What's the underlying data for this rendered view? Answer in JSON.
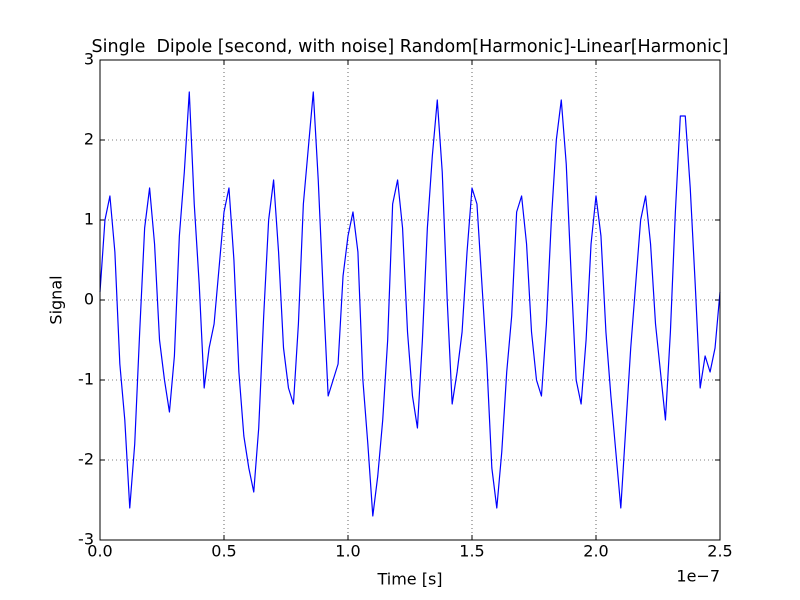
{
  "chart_data": {
    "type": "line",
    "title": "Single  Dipole [second, with noise] Random[Harmonic]-Linear[Harmonic]",
    "x_label": "Time [s]",
    "y_label": "Signal",
    "x_offset_label": "1e−7",
    "x": [
      0,
      2e-09,
      4e-09,
      6e-09,
      8e-09,
      1e-08,
      1.2e-08,
      1.4e-08,
      1.6e-08,
      1.8e-08,
      2e-08,
      2.2e-08,
      2.4e-08,
      2.6e-08,
      2.8e-08,
      3e-08,
      3.2e-08,
      3.4e-08,
      3.6e-08,
      3.8e-08,
      4e-08,
      4.2e-08,
      4.4e-08,
      4.6e-08,
      4.8e-08,
      5e-08,
      5.2e-08,
      5.4e-08,
      5.6e-08,
      5.8e-08,
      6e-08,
      6.2e-08,
      6.4e-08,
      6.6e-08,
      6.8e-08,
      7e-08,
      7.2e-08,
      7.4e-08,
      7.6e-08,
      7.8e-08,
      8e-08,
      8.2e-08,
      8.4e-08,
      8.6e-08,
      8.8e-08,
      9e-08,
      9.2e-08,
      9.4e-08,
      9.6e-08,
      9.8e-08,
      1e-07,
      1.02e-07,
      1.04e-07,
      1.06e-07,
      1.08e-07,
      1.1e-07,
      1.12e-07,
      1.14e-07,
      1.16e-07,
      1.18e-07,
      1.2e-07,
      1.22e-07,
      1.24e-07,
      1.26e-07,
      1.28e-07,
      1.3e-07,
      1.32e-07,
      1.34e-07,
      1.36e-07,
      1.38e-07,
      1.4e-07,
      1.42e-07,
      1.44e-07,
      1.46e-07,
      1.48e-07,
      1.5e-07,
      1.52e-07,
      1.54e-07,
      1.56e-07,
      1.58e-07,
      1.6e-07,
      1.62e-07,
      1.64e-07,
      1.66e-07,
      1.68e-07,
      1.7e-07,
      1.72e-07,
      1.74e-07,
      1.76e-07,
      1.78e-07,
      1.8e-07,
      1.82e-07,
      1.84e-07,
      1.86e-07,
      1.88e-07,
      1.9e-07,
      1.92e-07,
      1.94e-07,
      1.96e-07,
      1.98e-07,
      2e-07,
      2.02e-07,
      2.04e-07,
      2.06e-07,
      2.08e-07,
      2.1e-07,
      2.12e-07,
      2.14e-07,
      2.16e-07,
      2.18e-07,
      2.2e-07,
      2.22e-07,
      2.24e-07,
      2.26e-07,
      2.28e-07,
      2.3e-07,
      2.32e-07,
      2.34e-07,
      2.36e-07,
      2.38e-07,
      2.4e-07,
      2.42e-07,
      2.44e-07,
      2.46e-07,
      2.48e-07,
      2.5e-07
    ],
    "values": [
      0.1,
      1.0,
      1.3,
      0.6,
      -0.8,
      -1.5,
      -2.6,
      -1.8,
      -0.4,
      0.9,
      1.4,
      0.7,
      -0.5,
      -1.0,
      -1.4,
      -0.7,
      0.8,
      1.6,
      2.6,
      1.2,
      0.2,
      -1.1,
      -0.6,
      -0.3,
      0.4,
      1.1,
      1.4,
      0.5,
      -0.9,
      -1.7,
      -2.1,
      -2.4,
      -1.6,
      -0.2,
      1.0,
      1.5,
      0.6,
      -0.6,
      -1.1,
      -1.3,
      -0.3,
      1.2,
      1.9,
      2.6,
      1.5,
      0.1,
      -1.2,
      -1.0,
      -0.8,
      0.3,
      0.8,
      1.1,
      0.6,
      -1.0,
      -1.8,
      -2.7,
      -2.2,
      -1.5,
      -0.5,
      1.2,
      1.5,
      0.9,
      -0.4,
      -1.2,
      -1.6,
      -0.5,
      0.9,
      1.8,
      2.5,
      1.6,
      0.0,
      -1.3,
      -0.9,
      -0.4,
      0.6,
      1.4,
      1.2,
      0.2,
      -0.8,
      -2.1,
      -2.6,
      -1.9,
      -0.9,
      -0.2,
      1.1,
      1.3,
      0.7,
      -0.4,
      -1.0,
      -1.2,
      -0.3,
      1.0,
      2.0,
      2.5,
      1.7,
      0.3,
      -1.0,
      -1.3,
      -0.5,
      0.7,
      1.3,
      0.8,
      -0.4,
      -1.2,
      -1.9,
      -2.6,
      -1.6,
      -0.6,
      0.2,
      1.0,
      1.3,
      0.7,
      -0.3,
      -0.9,
      -1.5,
      -0.4,
      1.1,
      2.3,
      2.3,
      1.4,
      0.2,
      -1.1,
      -0.7,
      -0.9,
      -0.6,
      0.1
    ],
    "color": "#0000ff",
    "xlim": [
      0,
      2.5e-07
    ],
    "xticks": [
      {
        "value": 0,
        "label": "0.0"
      },
      {
        "value": 5e-08,
        "label": "0.5"
      },
      {
        "value": 1e-07,
        "label": "1.0"
      },
      {
        "value": 1.5e-07,
        "label": "1.5"
      },
      {
        "value": 2e-07,
        "label": "2.0"
      },
      {
        "value": 2.5e-07,
        "label": "2.5"
      }
    ],
    "ylim": [
      -3,
      3
    ],
    "yticks": [
      -3,
      -2,
      -1,
      0,
      1,
      2,
      3
    ],
    "grid": true
  }
}
